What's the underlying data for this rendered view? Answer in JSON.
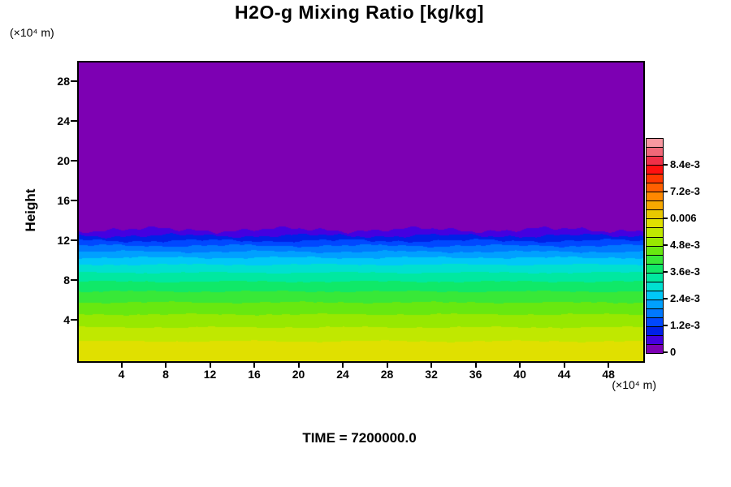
{
  "chart_data": {
    "type": "filled_contour",
    "title": "H2O-g Mixing Ratio [kg/kg]",
    "ylabel": "Height",
    "y_units_label": "(×10⁴ m)",
    "x_units_label": "(×10⁴ m)",
    "time_label": "TIME = 7200000.0",
    "x_range": [
      0,
      51
    ],
    "y_range": [
      0,
      30
    ],
    "x_ticks": [
      4,
      8,
      12,
      16,
      20,
      24,
      28,
      32,
      36,
      40,
      44,
      48
    ],
    "y_ticks": [
      4,
      8,
      12,
      16,
      20,
      24,
      28
    ],
    "grid": false,
    "legend_position": "right-colorbar",
    "field_description": "Horizontally quasi-uniform layered field with slightly wavy contour boundaries: mixing ratio ~6e-3 kg/kg near the surface, decreasing with height to 0 above ~13x10^4 m (purple region fills the upper plot).",
    "profile": {
      "note": "bands listed bottom-to-top; band_tops are heights (x10^4 m) of each band's upper boundary; values in kg/kg",
      "band_tops": [
        2.0,
        3.4,
        4.7,
        5.9,
        7.0,
        8.0,
        8.9,
        9.7,
        10.4,
        11.0,
        11.6,
        12.1,
        12.6,
        13.2,
        30
      ],
      "band_value_lo": [
        0.0056,
        0.0052,
        0.0048,
        0.0044,
        0.004,
        0.0036,
        0.0032,
        0.0028,
        0.0024,
        0.002,
        0.0016,
        0.0012,
        0.0008,
        0.0004,
        0.0
      ],
      "band_value_hi": [
        0.006,
        0.0056,
        0.0052,
        0.0048,
        0.0044,
        0.004,
        0.0036,
        0.0032,
        0.0028,
        0.0024,
        0.002,
        0.0016,
        0.0012,
        0.0008,
        0.0004
      ],
      "band_color_index": [
        14,
        13,
        12,
        11,
        10,
        9,
        8,
        7,
        6,
        5,
        4,
        3,
        2,
        1,
        0
      ],
      "wave_amplitudes": [
        0.1,
        0.1,
        0.1,
        0.1,
        0.1,
        0.1,
        0.1,
        0.1,
        0.12,
        0.14,
        0.16,
        0.2,
        0.24,
        0.34,
        0
      ]
    },
    "colorbar": {
      "min": 0,
      "max": 0.0096,
      "tick_values": [
        0,
        0.0012,
        0.0024,
        0.0036,
        0.0048,
        0.006,
        0.0072,
        0.0084
      ],
      "tick_labels": [
        "0",
        "1.2e-3",
        "2.4e-3",
        "3.6e-3",
        "4.8e-3",
        "0.006",
        "7.2e-3",
        "8.4e-3"
      ],
      "colors": [
        "#7d00b3",
        "#4400e0",
        "#0020e8",
        "#0048ff",
        "#0078ff",
        "#00a0ff",
        "#00c8f8",
        "#00e0d0",
        "#00e8a0",
        "#10e868",
        "#38e838",
        "#68e810",
        "#98e800",
        "#c0e800",
        "#e0e000",
        "#e8c800",
        "#f8a800",
        "#ff8800",
        "#ff6000",
        "#ff3800",
        "#ff1010",
        "#f03048",
        "#f06878",
        "#f898a0"
      ]
    }
  }
}
